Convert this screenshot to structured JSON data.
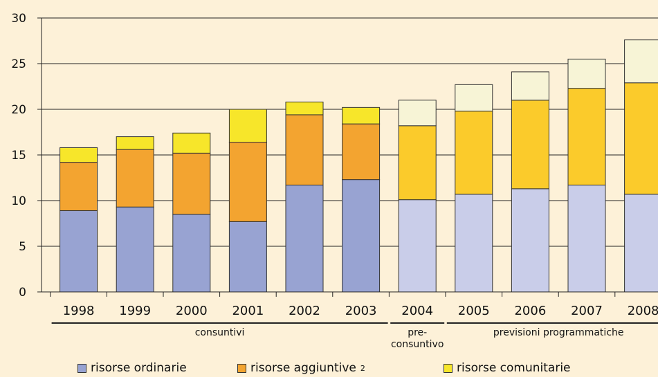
{
  "chart_data": {
    "type": "bar",
    "stacked": true,
    "categories": [
      "1998",
      "1999",
      "2000",
      "2001",
      "2002",
      "2003",
      "2004",
      "2005",
      "2006",
      "2007",
      "2008"
    ],
    "series": [
      {
        "name": "risorse ordinarie",
        "values": [
          8.9,
          9.3,
          8.5,
          7.7,
          11.7,
          12.3,
          10.1,
          10.7,
          11.3,
          11.7,
          10.7
        ]
      },
      {
        "name": "risorse aggiuntive",
        "values": [
          5.3,
          6.3,
          6.7,
          8.7,
          7.7,
          6.1,
          8.1,
          9.1,
          9.7,
          10.6,
          12.2
        ]
      },
      {
        "name": "risorse comunitarie",
        "values": [
          1.6,
          1.4,
          2.2,
          3.6,
          1.4,
          1.8,
          2.8,
          2.9,
          3.1,
          3.2,
          4.7
        ]
      }
    ],
    "ylim": [
      0,
      30
    ],
    "yticks": [
      0,
      5,
      10,
      15,
      20,
      25,
      30
    ],
    "grid": true,
    "groups": [
      {
        "label": "consuntivi",
        "from": 0,
        "to": 5
      },
      {
        "label_line1": "pre-",
        "label_line2": "consuntivo",
        "from": 6,
        "to": 6
      },
      {
        "label": "previsioni programmatiche",
        "from": 7,
        "to": 10
      }
    ],
    "colors": {
      "background": "#fdf1d8",
      "actual": [
        "#98a3d2",
        "#f3a430",
        "#f7e62a"
      ],
      "forecast": [
        "#c9cde9",
        "#fbcb2b",
        "#f7f4d6"
      ]
    },
    "legend_position": "bottom"
  },
  "legend": {
    "items": [
      {
        "label": "risorse ordinarie",
        "sup": ""
      },
      {
        "label": "risorse aggiuntive",
        "sup": "2"
      },
      {
        "label": "risorse comunitarie",
        "sup": ""
      }
    ]
  }
}
